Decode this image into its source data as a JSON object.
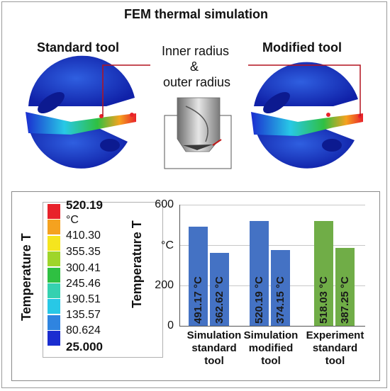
{
  "title": "FEM thermal simulation",
  "labels": {
    "standard_tool": "Standard tool",
    "modified_tool": "Modified tool",
    "inner_radius": "Inner radius",
    "ampersand": "&",
    "outer_radius": "outer radius"
  },
  "legend": {
    "title": "Temperature T",
    "max": "520.19",
    "unit": "°C",
    "values": [
      "410.30",
      "355.35",
      "300.41",
      "245.46",
      "190.51",
      "135.57",
      "80.624"
    ],
    "min": "25.000",
    "colors": [
      "#e8222a",
      "#f5a21f",
      "#f5e51e",
      "#9fd52a",
      "#2fc042",
      "#35d1b0",
      "#28c8e6",
      "#2f84e0",
      "#1a2dd0"
    ]
  },
  "chart_data": {
    "type": "bar",
    "ylabel": "Temperature T",
    "unit": "°C",
    "ylim": [
      0,
      600
    ],
    "yticks": [
      "600",
      "°C",
      "200",
      "0"
    ],
    "categories": [
      [
        "Simulation",
        "standard",
        "tool"
      ],
      [
        "Simulation",
        "modified",
        "tool"
      ],
      [
        "Experiment",
        "standard",
        "tool"
      ]
    ],
    "series": [
      {
        "values": [
          491.17,
          520.19,
          518.03
        ],
        "labels": [
          "491.17 °C",
          "520.19 °C",
          "518.03 °C"
        ]
      },
      {
        "values": [
          362.62,
          374.15,
          387.25
        ],
        "labels": [
          "362.62 °C",
          "374.15 °C",
          "387.25 °C"
        ]
      }
    ],
    "colors": [
      "#4472c4",
      "#70ad47"
    ]
  }
}
